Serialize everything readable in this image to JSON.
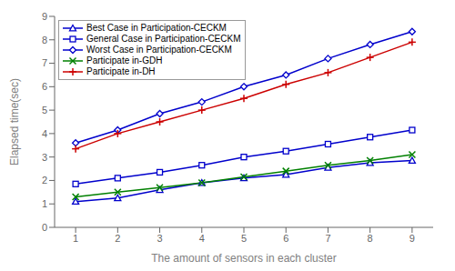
{
  "chart_data": {
    "type": "line",
    "x": [
      1,
      2,
      3,
      4,
      5,
      6,
      7,
      8,
      9
    ],
    "series": [
      {
        "name": "Best Case in Participation-CECKM",
        "color": "#0000cc",
        "marker": "triangle",
        "values": [
          1.1,
          1.25,
          1.6,
          1.9,
          2.1,
          2.25,
          2.55,
          2.75,
          2.85
        ]
      },
      {
        "name": "General Case in Participation-CECKM",
        "color": "#0000cc",
        "marker": "square",
        "values": [
          1.85,
          2.1,
          2.35,
          2.65,
          3.0,
          3.25,
          3.55,
          3.85,
          4.15
        ]
      },
      {
        "name": "Worst Case in Participation-CECKM",
        "color": "#0000cc",
        "marker": "diamond",
        "values": [
          3.6,
          4.15,
          4.85,
          5.35,
          6.0,
          6.5,
          7.2,
          7.8,
          8.35
        ]
      },
      {
        "name": "Participate in-GDH",
        "color": "#008000",
        "marker": "x",
        "values": [
          1.3,
          1.5,
          1.7,
          1.9,
          2.15,
          2.4,
          2.65,
          2.85,
          3.1
        ]
      },
      {
        "name": "Participate in-DH",
        "color": "#cc0000",
        "marker": "plus",
        "values": [
          3.35,
          4.0,
          4.5,
          5.0,
          5.5,
          6.1,
          6.6,
          7.25,
          7.9
        ]
      }
    ],
    "xlabel": "The amount of sensors in each cluster",
    "ylabel": "Elapsed time(sec)",
    "xlim": [
      0.5,
      9.5
    ],
    "ylim": [
      0,
      9
    ],
    "xticks": [
      1,
      2,
      3,
      4,
      5,
      6,
      7,
      8,
      9
    ],
    "yticks": [
      0,
      1,
      2,
      3,
      4,
      5,
      6,
      7,
      8,
      9
    ],
    "grid": false,
    "legend": "upper left"
  }
}
